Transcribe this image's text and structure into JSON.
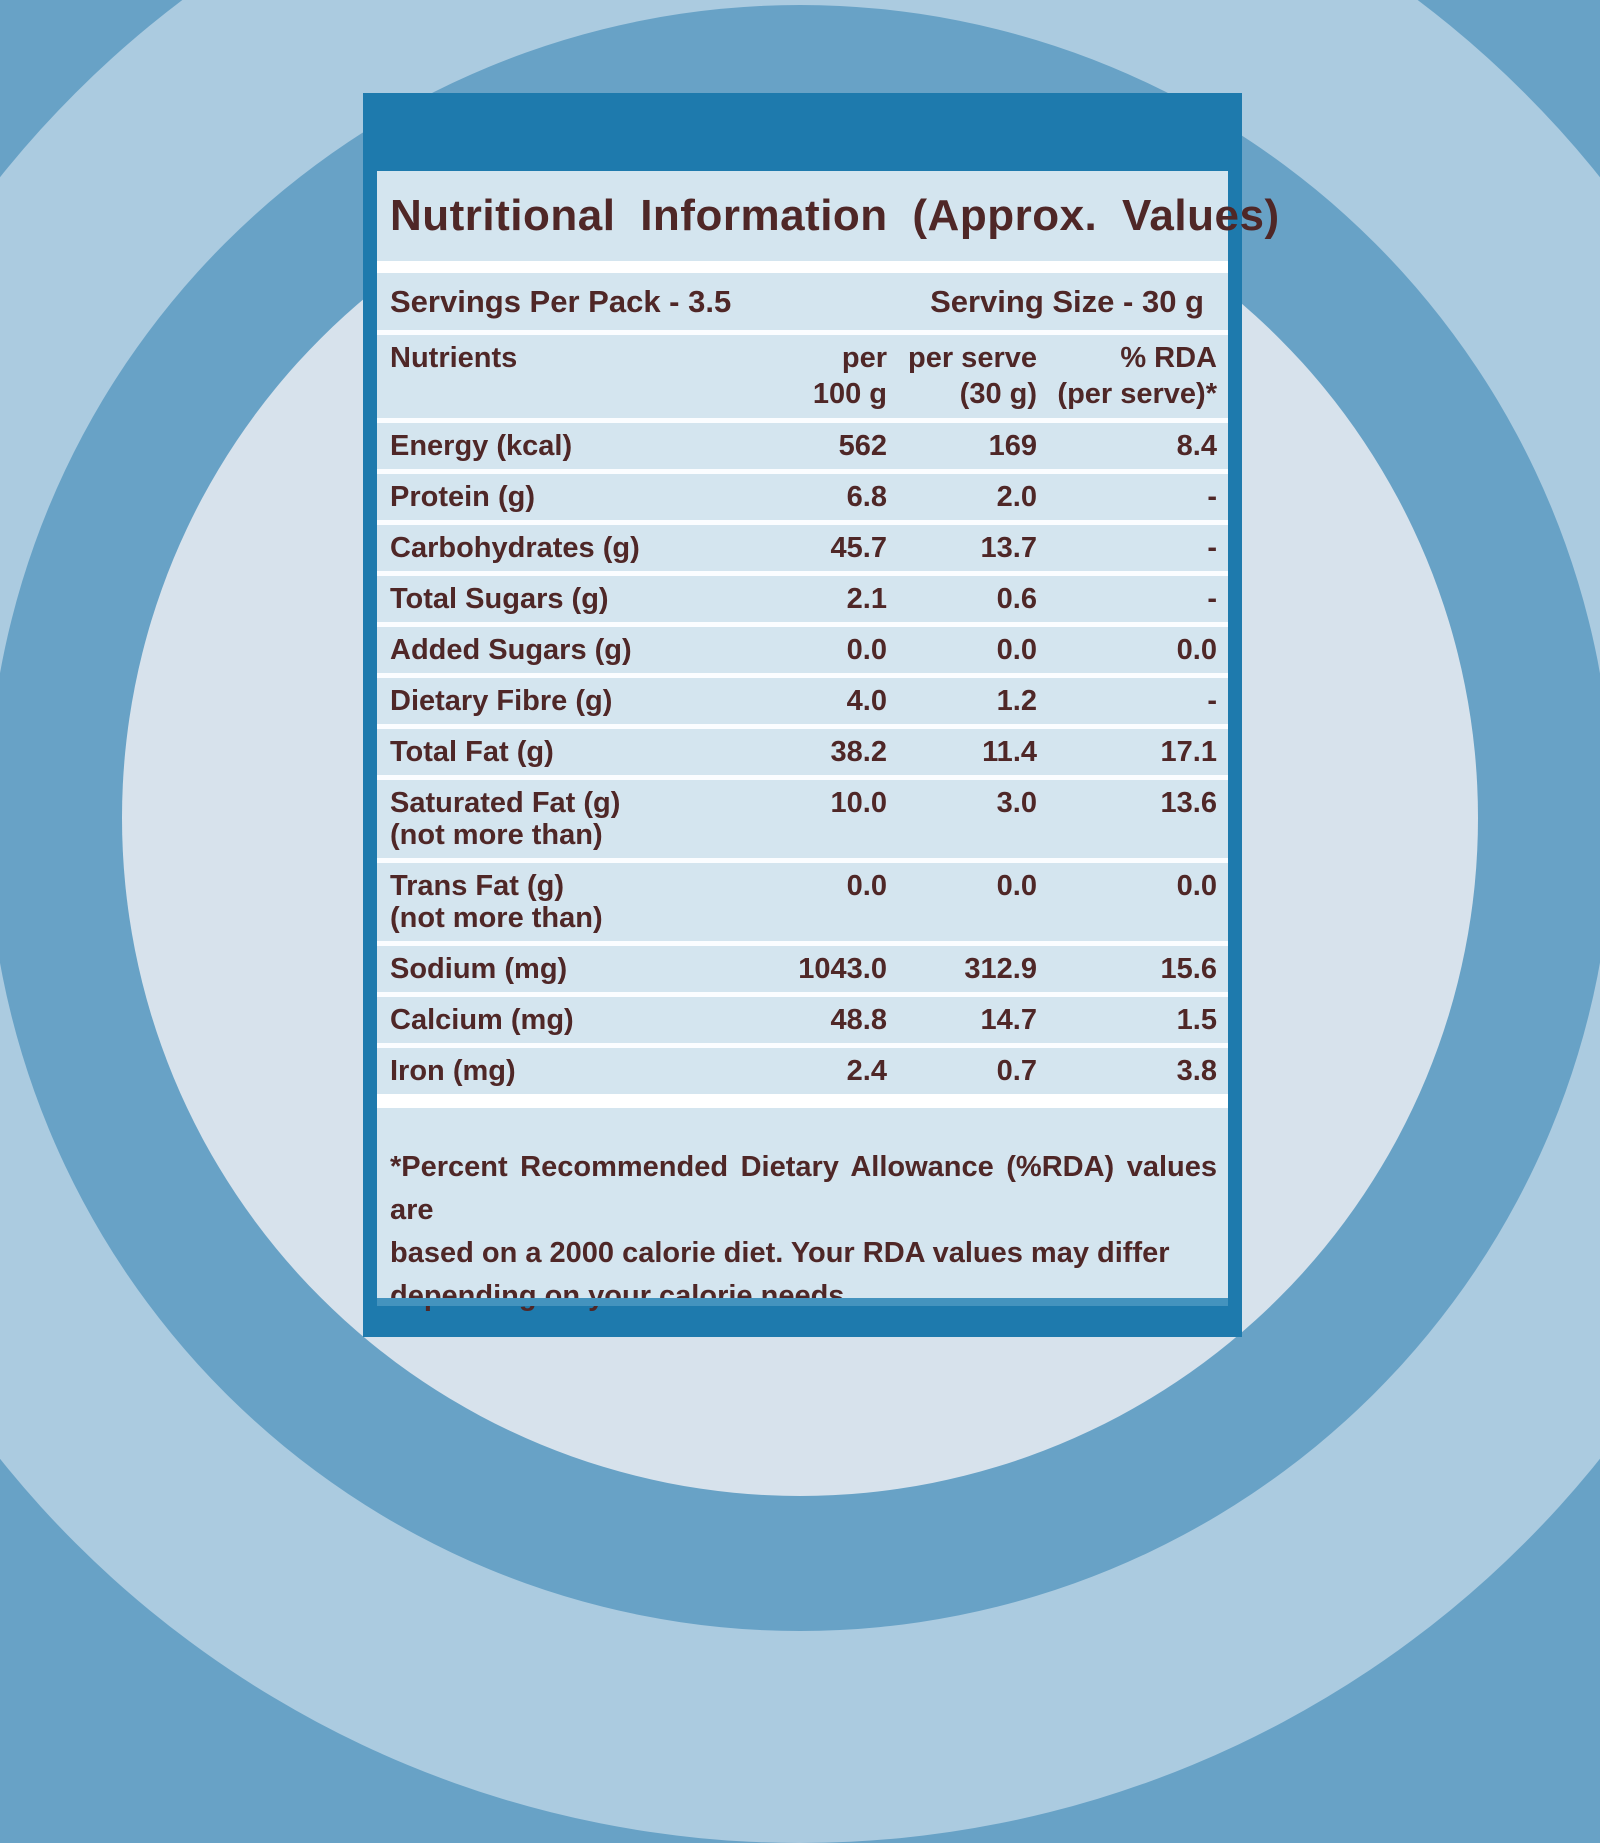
{
  "label": {
    "title": "Nutritional Information  (Approx. Values)",
    "servings_per_pack": "Servings Per Pack - 3.5",
    "serving_size": "Serving Size - 30 g",
    "header": {
      "nutrients": "Nutrients",
      "per_100g_line1": "per",
      "per_100g_line2": "100 g",
      "per_serve_line1": "per serve",
      "per_serve_line2": "(30 g)",
      "rda_line1": "% RDA",
      "rda_line2": "(per serve)*"
    },
    "rows": [
      {
        "label": "Energy (kcal)",
        "sublabel": "",
        "per_100g": "562",
        "per_serve": "169",
        "rda_per_serve": "8.4"
      },
      {
        "label": "Protein (g)",
        "sublabel": "",
        "per_100g": "6.8",
        "per_serve": "2.0",
        "rda_per_serve": "-"
      },
      {
        "label": "Carbohydrates (g)",
        "sublabel": "",
        "per_100g": "45.7",
        "per_serve": "13.7",
        "rda_per_serve": "-"
      },
      {
        "label": "Total Sugars (g)",
        "sublabel": "",
        "per_100g": "2.1",
        "per_serve": "0.6",
        "rda_per_serve": "-"
      },
      {
        "label": "Added Sugars (g)",
        "sublabel": "",
        "per_100g": "0.0",
        "per_serve": "0.0",
        "rda_per_serve": "0.0"
      },
      {
        "label": "Dietary Fibre (g)",
        "sublabel": "",
        "per_100g": "4.0",
        "per_serve": "1.2",
        "rda_per_serve": "-"
      },
      {
        "label": "Total Fat (g)",
        "sublabel": "",
        "per_100g": "38.2",
        "per_serve": "11.4",
        "rda_per_serve": "17.1"
      },
      {
        "label": "Saturated Fat (g)",
        "sublabel": "(not more than)",
        "per_100g": "10.0",
        "per_serve": "3.0",
        "rda_per_serve": "13.6"
      },
      {
        "label": "Trans Fat (g)",
        "sublabel": "(not more than)",
        "per_100g": "0.0",
        "per_serve": "0.0",
        "rda_per_serve": "0.0"
      },
      {
        "label": "Sodium (mg)",
        "sublabel": "",
        "per_100g": "1043.0",
        "per_serve": "312.9",
        "rda_per_serve": "15.6"
      },
      {
        "label": "Calcium (mg)",
        "sublabel": "",
        "per_100g": "48.8",
        "per_serve": "14.7",
        "rda_per_serve": "1.5"
      },
      {
        "label": "Iron (mg)",
        "sublabel": "",
        "per_100g": "2.4",
        "per_serve": "0.7",
        "rda_per_serve": "3.8"
      }
    ],
    "footnote_lines": [
      "*Percent  Recommended  Dietary  Allowance  (%RDA)  values  are",
      "based on a 2000 calorie diet. Your RDA values may differ",
      "depending on your calorie needs"
    ]
  },
  "colors": {
    "outer_ring_blue": "#68A2C6",
    "light_ring_blue": "#ABCBE0",
    "inner_circle_blue": "#D7E2EC",
    "panel_frame_blue": "#1E7AAD",
    "table_background": "#D4E5EF",
    "text_maroon": "#4F2727"
  }
}
